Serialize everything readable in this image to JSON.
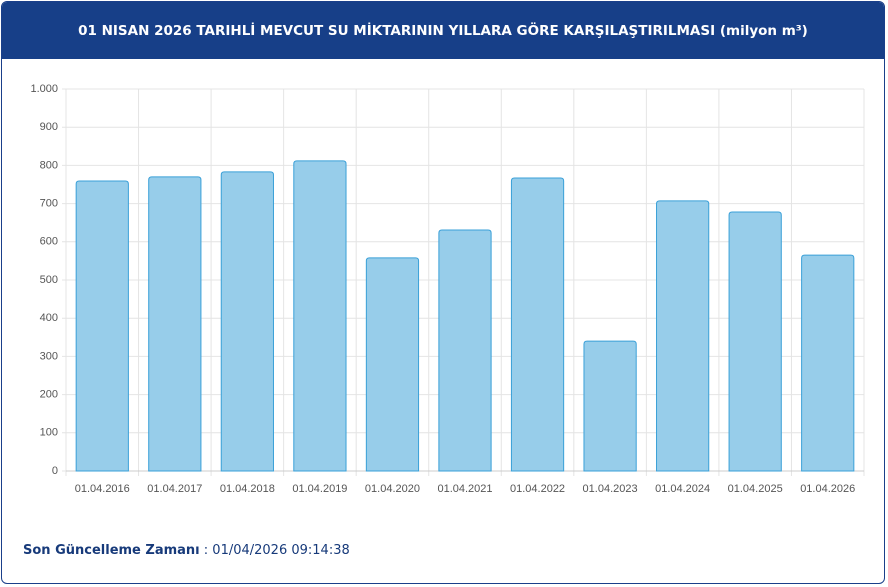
{
  "chart_data": {
    "type": "bar",
    "title": "01 NISAN 2026 TARIHLİ MEVCUT SU MİKTARININ YILLARA GÖRE KARŞILAŞTIRILMASI (milyon m³)",
    "categories": [
      "01.04.2016",
      "01.04.2017",
      "01.04.2018",
      "01.04.2019",
      "01.04.2020",
      "01.04.2021",
      "01.04.2022",
      "01.04.2023",
      "01.04.2024",
      "01.04.2025",
      "01.04.2026"
    ],
    "values": [
      759,
      770,
      783,
      812,
      558,
      631,
      767,
      340,
      707,
      678,
      565
    ],
    "color": "#97cdea",
    "ylim": [
      0,
      1000
    ],
    "yticks": [
      0,
      100,
      200,
      300,
      400,
      500,
      600,
      700,
      800,
      900,
      {
        "value": 1000,
        "label": "1.000"
      }
    ],
    "grid": true
  },
  "footer": {
    "label": "Son Güncelleme Zamanı",
    "separator": ":",
    "value": "01/04/2026 09:14:38"
  }
}
